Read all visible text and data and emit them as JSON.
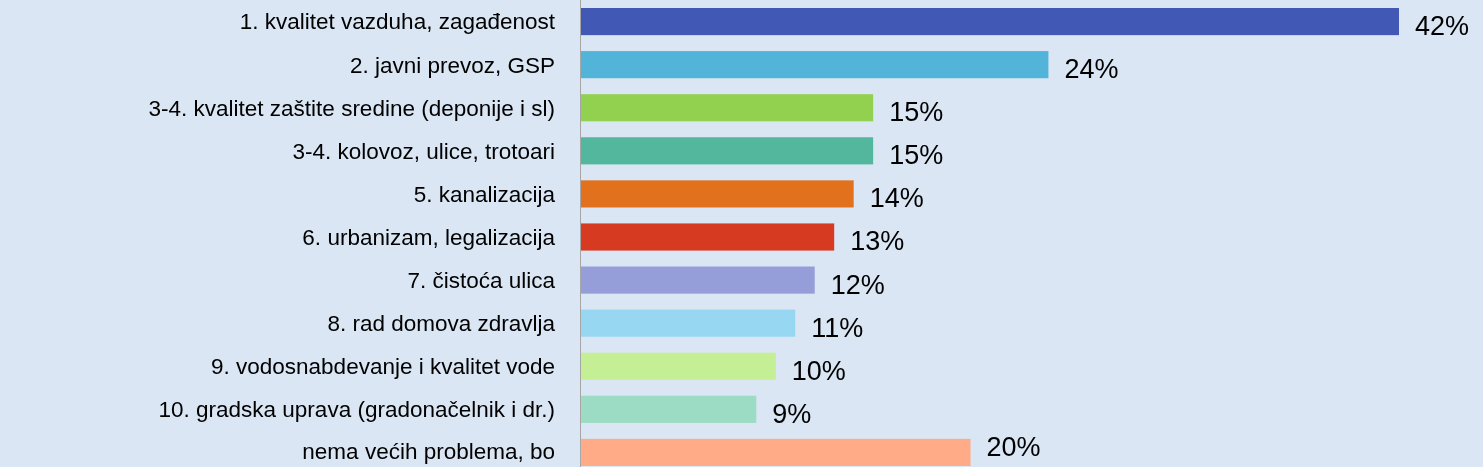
{
  "chart_data": {
    "type": "bar",
    "orientation": "horizontal",
    "categories": [
      "1. kvalitet vazduha, zagađenost",
      "2. javni prevoz, GSP",
      "3-4. kvalitet zaštite sredine (deponije i sl)",
      "3-4. kolovoz, ulice, trotoari",
      "5. kanalizacija",
      "6. urbanizam, legalizacija",
      "7. čistoća ulica",
      "8. rad domova zdravlja",
      "9. vodosnabdevanje i kvalitet vode",
      "10. gradska uprava (gradonačelnik i dr.)",
      "nema većih problema, bo"
    ],
    "values": [
      42,
      24,
      15,
      15,
      14,
      13,
      12,
      11,
      10,
      9,
      20
    ],
    "value_labels": [
      "42%",
      "24%",
      "15%",
      "15%",
      "14%",
      "13%",
      "12%",
      "11%",
      "10%",
      "9%",
      "20%"
    ],
    "colors": [
      "#4158b4",
      "#52b4d9",
      "#92d050",
      "#52b79c",
      "#e2711d",
      "#d63a20",
      "#959ed8",
      "#97d7f2",
      "#c5ef95",
      "#9ddcc4",
      "#ffab88"
    ]
  }
}
